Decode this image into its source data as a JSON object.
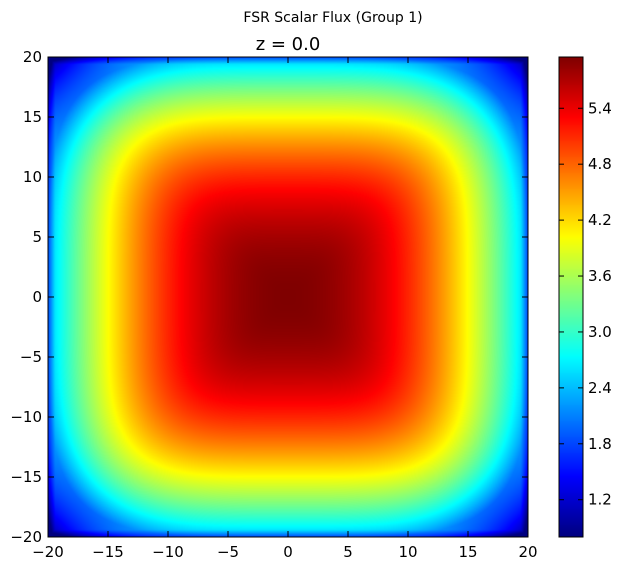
{
  "chart_data": {
    "type": "heatmap",
    "suptitle": "FSR Scalar Flux (Group 1)",
    "title": "z = 0.0",
    "xlabel": "",
    "ylabel": "",
    "xlim": [
      -20,
      20
    ],
    "ylim": [
      -20,
      20
    ],
    "x_ticks": [
      -20,
      -15,
      -10,
      -5,
      0,
      5,
      10,
      15,
      20
    ],
    "y_ticks": [
      20,
      15,
      10,
      5,
      0,
      -5,
      -10,
      -15,
      -20
    ],
    "x_tick_labels": [
      "−20",
      "−15",
      "−10",
      "−5",
      "0",
      "5",
      "10",
      "15",
      "20"
    ],
    "y_tick_labels": [
      "20",
      "15",
      "10",
      "5",
      "0",
      "−5",
      "−10",
      "−15",
      "−20"
    ],
    "colormap": "jet",
    "grid": false,
    "colorbar": {
      "range": [
        0.8,
        5.95
      ],
      "ticks": [
        1.2,
        1.8,
        2.4,
        3.0,
        3.6,
        4.2,
        4.8,
        5.4
      ],
      "tick_labels": [
        "1.2",
        "1.8",
        "2.4",
        "3.0",
        "3.6",
        "4.2",
        "4.8",
        "5.4"
      ]
    },
    "field": {
      "description_values": "peak at center, decreasing toward square edges",
      "center_value": 5.95,
      "edge_midpoint_value": 2.4,
      "corner_value": 0.85
    }
  }
}
